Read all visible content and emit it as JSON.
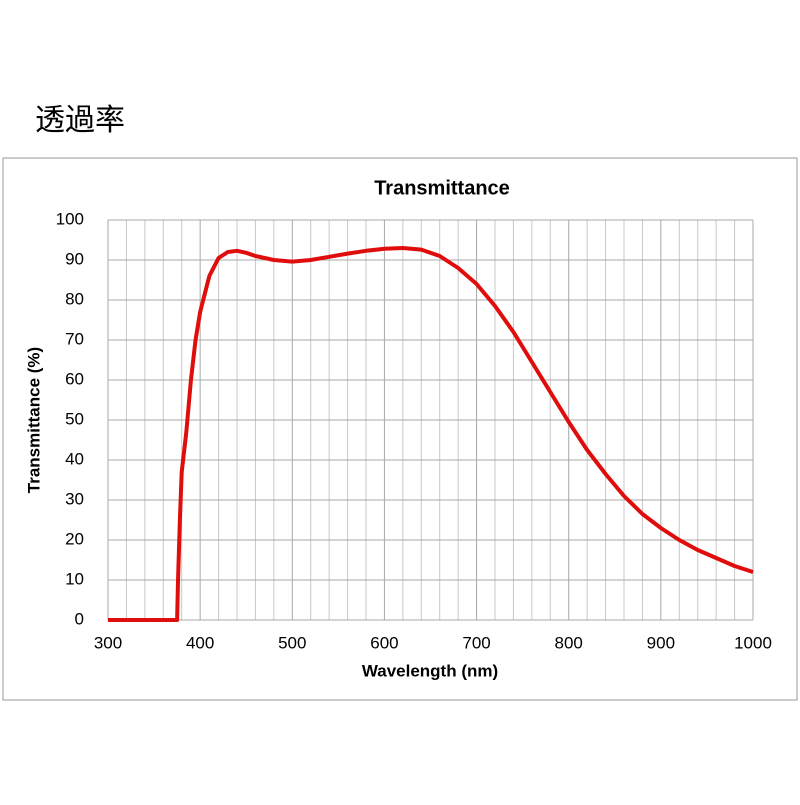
{
  "heading": "透過率",
  "chart_data": {
    "type": "line",
    "title": "Transmittance",
    "xlabel": "Wavelength (nm)",
    "ylabel": "Transmittance (%)",
    "x": [
      300,
      370,
      375,
      376,
      378,
      380,
      385,
      390,
      395,
      400,
      410,
      420,
      430,
      440,
      450,
      460,
      480,
      500,
      520,
      540,
      560,
      580,
      600,
      620,
      640,
      660,
      680,
      700,
      720,
      740,
      760,
      780,
      800,
      820,
      840,
      860,
      880,
      900,
      920,
      940,
      960,
      980,
      1000
    ],
    "series": [
      {
        "name": "Transmittance",
        "color": "#e00d0d",
        "values": [
          0,
          0,
          0,
          10,
          25,
          37,
          47,
          60,
          70,
          77,
          86,
          90.5,
          92,
          92.3,
          91.8,
          91,
          90,
          89.6,
          90,
          90.8,
          91.6,
          92.3,
          92.8,
          93,
          92.6,
          91,
          88,
          84,
          78.5,
          72,
          64.5,
          57,
          49.5,
          42.5,
          36.5,
          31,
          26.5,
          23,
          20,
          17.5,
          15.5,
          13.5,
          12
        ]
      }
    ],
    "xlim": [
      300,
      1000
    ],
    "xticks": [
      300,
      400,
      500,
      600,
      700,
      800,
      900,
      1000
    ],
    "xminorticks": [
      320,
      340,
      360,
      380,
      420,
      440,
      460,
      480,
      520,
      540,
      560,
      580,
      620,
      640,
      660,
      680,
      720,
      740,
      760,
      780,
      820,
      840,
      860,
      880,
      920,
      940,
      960,
      980
    ],
    "ylim": [
      0,
      100
    ],
    "yticks": [
      0,
      10,
      20,
      30,
      40,
      50,
      60,
      70,
      80,
      90,
      100
    ],
    "grid": true
  }
}
